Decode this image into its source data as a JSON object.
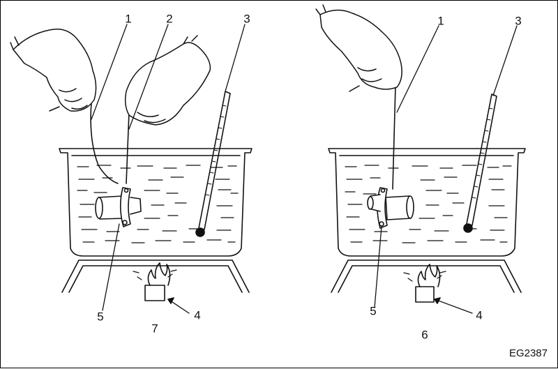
{
  "figure": {
    "code": "EG2387",
    "left_panel": {
      "callouts": [
        "1",
        "2",
        "3",
        "4",
        "5"
      ],
      "caption": "7"
    },
    "right_panel": {
      "callouts": [
        "1",
        "3",
        "4",
        "5"
      ],
      "caption": "6"
    }
  }
}
